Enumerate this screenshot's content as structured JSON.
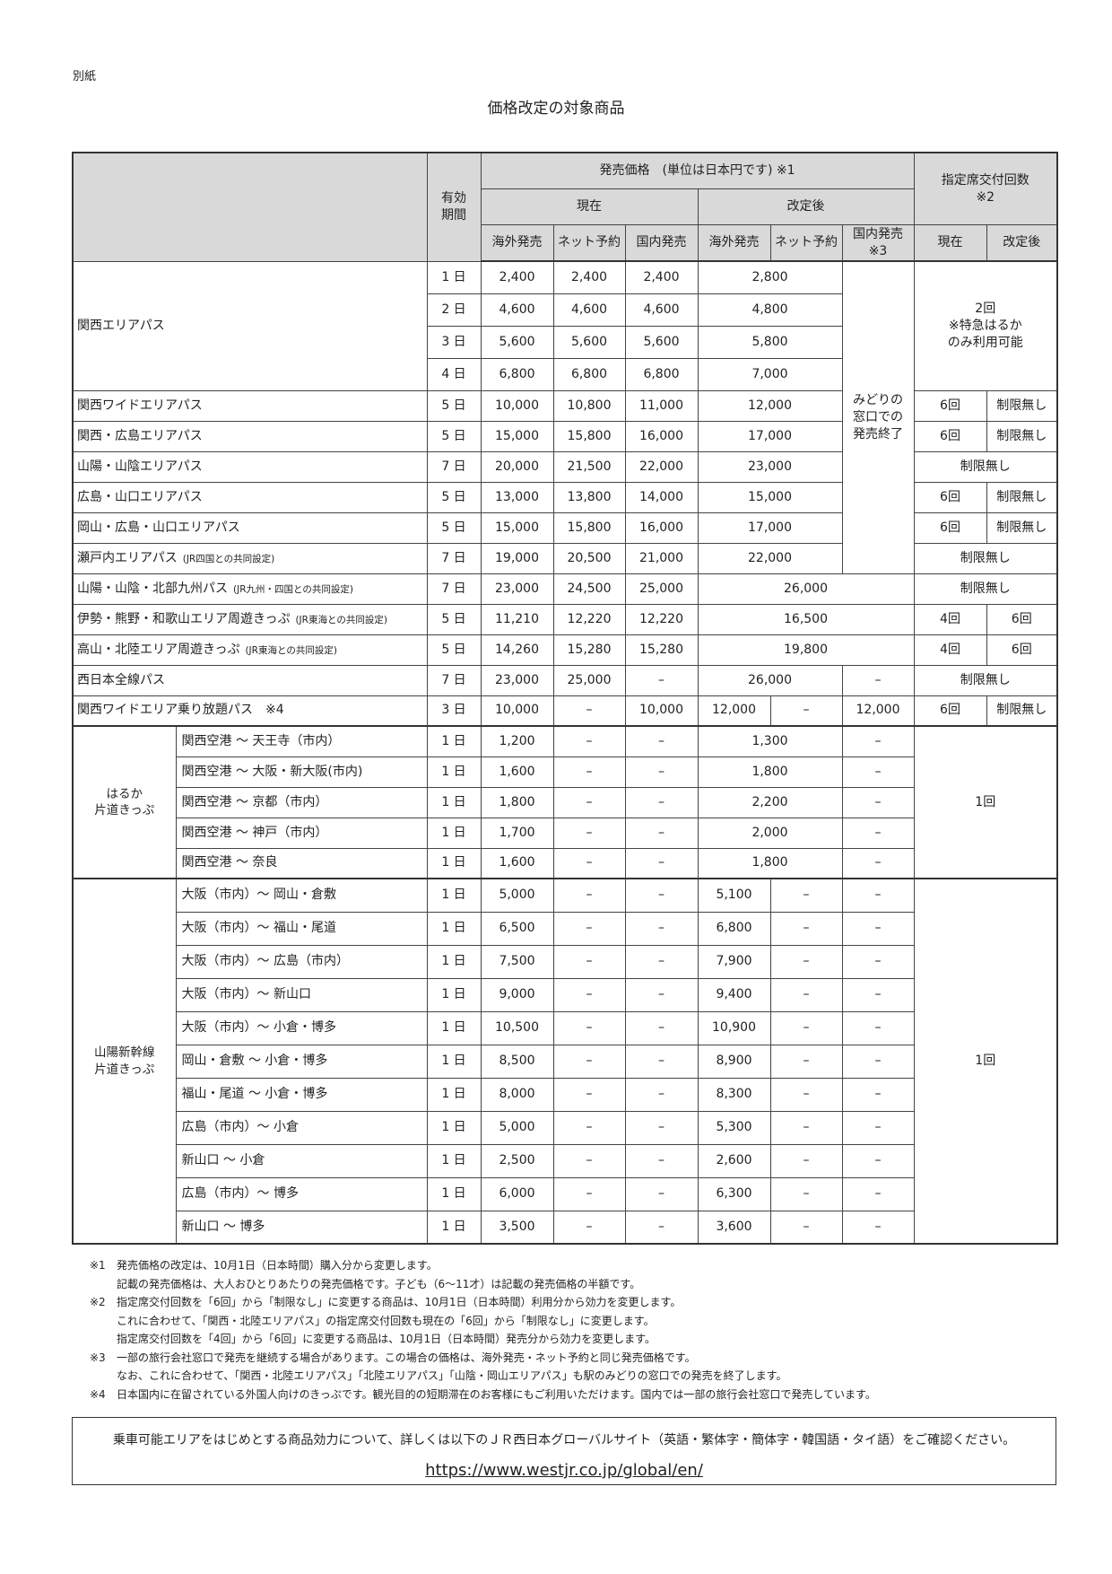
{
  "header": {
    "attachment": "別紙",
    "title": "価格改定の対象商品"
  },
  "table": {
    "head": [
      [
        {
          "t": "",
          "cs": 2,
          "rs": 3
        },
        {
          "t": "有効\n期間",
          "rs": 3
        },
        {
          "t": "発売価格　(単位は日本円です) ※1",
          "cs": 6
        },
        {
          "t": "指定席交付回数\n※2",
          "cs": 2,
          "rs": 2
        }
      ],
      [
        {
          "t": "現在",
          "cs": 3
        },
        {
          "t": "改定後",
          "cs": 3
        }
      ],
      [
        "海外発売",
        "ネット予約",
        "国内発売",
        "海外発売",
        "ネット予約",
        "国内発売\n※3",
        "現在",
        "改定後"
      ]
    ],
    "passes": [
      [
        {
          "k": "n",
          "t": "関西エリアパス",
          "rs": 4,
          "cs": 2
        },
        "1 日",
        "2,400",
        "2,400",
        "2,400",
        {
          "t": "2,800",
          "cs": 2
        },
        {
          "t": "みどりの\n窓口での\n発売終了",
          "rs": 10
        },
        {
          "t": "2回\n※特急はるか\nのみ利用可能",
          "rs": 4,
          "cs": 2
        }
      ],
      [
        "2 日",
        "4,600",
        "4,600",
        "4,600",
        {
          "t": "4,800",
          "cs": 2
        }
      ],
      [
        "3 日",
        "5,600",
        "5,600",
        "5,600",
        {
          "t": "5,800",
          "cs": 2
        }
      ],
      [
        "4 日",
        "6,800",
        "6,800",
        "6,800",
        {
          "t": "7,000",
          "cs": 2
        }
      ],
      [
        {
          "k": "n",
          "t": "関西ワイドエリアパス",
          "cs": 2
        },
        "5 日",
        "10,000",
        "10,800",
        "11,000",
        {
          "t": "12,000",
          "cs": 2
        },
        "6回",
        "制限無し"
      ],
      [
        {
          "k": "n",
          "t": "関西・広島エリアパス",
          "cs": 2
        },
        "5 日",
        "15,000",
        "15,800",
        "16,000",
        {
          "t": "17,000",
          "cs": 2
        },
        "6回",
        "制限無し"
      ],
      [
        {
          "k": "n",
          "t": "山陽・山陰エリアパス",
          "cs": 2
        },
        "7 日",
        "20,000",
        "21,500",
        "22,000",
        {
          "t": "23,000",
          "cs": 2
        },
        {
          "t": "制限無し",
          "cs": 2
        }
      ],
      [
        {
          "k": "n",
          "t": "広島・山口エリアパス",
          "cs": 2
        },
        "5 日",
        "13,000",
        "13,800",
        "14,000",
        {
          "t": "15,000",
          "cs": 2
        },
        "6回",
        "制限無し"
      ],
      [
        {
          "k": "n",
          "t": "岡山・広島・山口エリアパス",
          "cs": 2
        },
        "5 日",
        "15,000",
        "15,800",
        "16,000",
        {
          "t": "17,000",
          "cs": 2
        },
        "6回",
        "制限無し"
      ],
      [
        {
          "k": "n",
          "t": "瀬戸内エリアパス",
          "note": "(JR四国との共同設定)",
          "cs": 2
        },
        "7 日",
        "19,000",
        "20,500",
        "21,000",
        {
          "t": "22,000",
          "cs": 2
        },
        {
          "t": "制限無し",
          "cs": 2
        }
      ],
      [
        {
          "k": "n",
          "t": "山陽・山陰・北部九州パス",
          "note": "(JR九州・四国との共同設定)",
          "cs": 2
        },
        "7 日",
        "23,000",
        "24,500",
        "25,000",
        {
          "t": "26,000",
          "cs": 3
        },
        {
          "t": "制限無し",
          "cs": 2
        }
      ],
      [
        {
          "k": "n",
          "t": "伊勢・熊野・和歌山エリア周遊きっぷ",
          "note": "(JR東海との共同設定)",
          "cs": 2
        },
        "5 日",
        "11,210",
        "12,220",
        "12,220",
        {
          "t": "16,500",
          "cs": 3
        },
        "4回",
        "6回"
      ],
      [
        {
          "k": "n",
          "t": "高山・北陸エリア周遊きっぷ",
          "note": "(JR東海との共同設定)",
          "cs": 2
        },
        "5 日",
        "14,260",
        "15,280",
        "15,280",
        {
          "t": "19,800",
          "cs": 3
        },
        "4回",
        "6回"
      ],
      [
        {
          "k": "n",
          "t": "西日本全線パス",
          "cs": 2
        },
        "7 日",
        "23,000",
        "25,000",
        "–",
        {
          "t": "26,000",
          "cs": 2
        },
        "–",
        {
          "t": "制限無し",
          "cs": 2
        }
      ],
      [
        {
          "k": "n",
          "t": "関西ワイドエリア乗り放題パス　※4",
          "cs": 2
        },
        "3 日",
        "10,000",
        "–",
        "10,000",
        "12,000",
        "–",
        "12,000",
        "6回",
        "制限無し"
      ]
    ],
    "haruka": [
      [
        {
          "k": "g",
          "t": "はるか\n片道きっぷ",
          "rs": 5
        },
        {
          "k": "r",
          "t": "関西空港 ～ 天王寺（市内）"
        },
        "1 日",
        "1,200",
        "–",
        "–",
        {
          "t": "1,300",
          "cs": 2
        },
        "–",
        {
          "t": "1回",
          "rs": 5,
          "cs": 2
        }
      ],
      [
        {
          "k": "r",
          "t": "関西空港 ～ 大阪・新大阪(市内)"
        },
        "1 日",
        "1,600",
        "–",
        "–",
        {
          "t": "1,800",
          "cs": 2
        },
        "–"
      ],
      [
        {
          "k": "r",
          "t": "関西空港 ～ 京都（市内）"
        },
        "1 日",
        "1,800",
        "–",
        "–",
        {
          "t": "2,200",
          "cs": 2
        },
        "–"
      ],
      [
        {
          "k": "r",
          "t": "関西空港 ～ 神戸（市内）"
        },
        "1 日",
        "1,700",
        "–",
        "–",
        {
          "t": "2,000",
          "cs": 2
        },
        "–"
      ],
      [
        {
          "k": "r",
          "t": "関西空港 ～ 奈良"
        },
        "1 日",
        "1,600",
        "–",
        "–",
        {
          "t": "1,800",
          "cs": 2
        },
        "–"
      ]
    ],
    "shinkansen": [
      [
        {
          "k": "g",
          "t": "山陽新幹線\n片道きっぷ",
          "rs": 11
        },
        {
          "k": "r",
          "t": "大阪（市内）～ 岡山・倉敷"
        },
        "1 日",
        "5,000",
        "–",
        "–",
        "5,100",
        "–",
        "–",
        {
          "t": "1回",
          "rs": 11,
          "cs": 2
        }
      ],
      [
        {
          "k": "r",
          "t": "大阪（市内）～ 福山・尾道"
        },
        "1 日",
        "6,500",
        "–",
        "–",
        "6,800",
        "–",
        "–"
      ],
      [
        {
          "k": "r",
          "t": "大阪（市内）～ 広島（市内）"
        },
        "1 日",
        "7,500",
        "–",
        "–",
        "7,900",
        "–",
        "–"
      ],
      [
        {
          "k": "r",
          "t": "大阪（市内）～ 新山口"
        },
        "1 日",
        "9,000",
        "–",
        "–",
        "9,400",
        "–",
        "–"
      ],
      [
        {
          "k": "r",
          "t": "大阪（市内）～ 小倉・博多"
        },
        "1 日",
        "10,500",
        "–",
        "–",
        "10,900",
        "–",
        "–"
      ],
      [
        {
          "k": "r",
          "t": "岡山・倉敷 ～ 小倉・博多"
        },
        "1 日",
        "8,500",
        "–",
        "–",
        "8,900",
        "–",
        "–"
      ],
      [
        {
          "k": "r",
          "t": "福山・尾道 ～ 小倉・博多"
        },
        "1 日",
        "8,000",
        "–",
        "–",
        "8,300",
        "–",
        "–"
      ],
      [
        {
          "k": "r",
          "t": "広島（市内）～ 小倉"
        },
        "1 日",
        "5,000",
        "–",
        "–",
        "5,300",
        "–",
        "–"
      ],
      [
        {
          "k": "r",
          "t": "新山口 ～ 小倉"
        },
        "1 日",
        "2,500",
        "–",
        "–",
        "2,600",
        "–",
        "–"
      ],
      [
        {
          "k": "r",
          "t": "広島（市内）～ 博多"
        },
        "1 日",
        "6,000",
        "–",
        "–",
        "6,300",
        "–",
        "–"
      ],
      [
        {
          "k": "r",
          "t": "新山口 ～ 博多"
        },
        "1 日",
        "3,500",
        "–",
        "–",
        "3,600",
        "–",
        "–"
      ]
    ]
  },
  "footnotes": [
    {
      "m": "※1",
      "t": "発売価格の改定は、10月1日（日本時間）購入分から変更します。"
    },
    {
      "m": "",
      "t": "記載の発売価格は、大人おひとりあたりの発売価格です。子ども（6～11才）は記載の発売価格の半額です。"
    },
    {
      "m": "※2",
      "t": "指定席交付回数を「6回」から「制限なし」に変更する商品は、10月1日（日本時間）利用分から効力を変更します。"
    },
    {
      "m": "",
      "t": "これに合わせて、「関西・北陸エリアパス」の指定席交付回数も現在の「6回」から「制限なし」に変更します。"
    },
    {
      "m": "",
      "t": "指定席交付回数を「4回」から「6回」に変更する商品は、10月1日（日本時間）発売分から効力を変更します。"
    },
    {
      "m": "※3",
      "t": "一部の旅行会社窓口で発売を継続する場合があります。この場合の価格は、海外発売・ネット予約と同じ発売価格です。"
    },
    {
      "m": "",
      "t": "なお、これに合わせて、「関西・北陸エリアパス」「北陸エリアパス」「山陰・岡山エリアパス」も駅のみどりの窓口での発売を終了します。"
    },
    {
      "m": "※4",
      "t": "日本国内に在留されている外国人向けのきっぷです。観光目的の短期滞在のお客様にもご利用いただけます。国内では一部の旅行会社窓口で発売しています。"
    }
  ],
  "info_box": {
    "text": "乗車可能エリアをはじめとする商品効力について、詳しくは以下のＪＲ西日本グローバルサイト（英語・繁体字・簡体字・韓国語・タイ語）をご確認ください。",
    "url": "https://www.westjr.co.jp/global/en/"
  }
}
